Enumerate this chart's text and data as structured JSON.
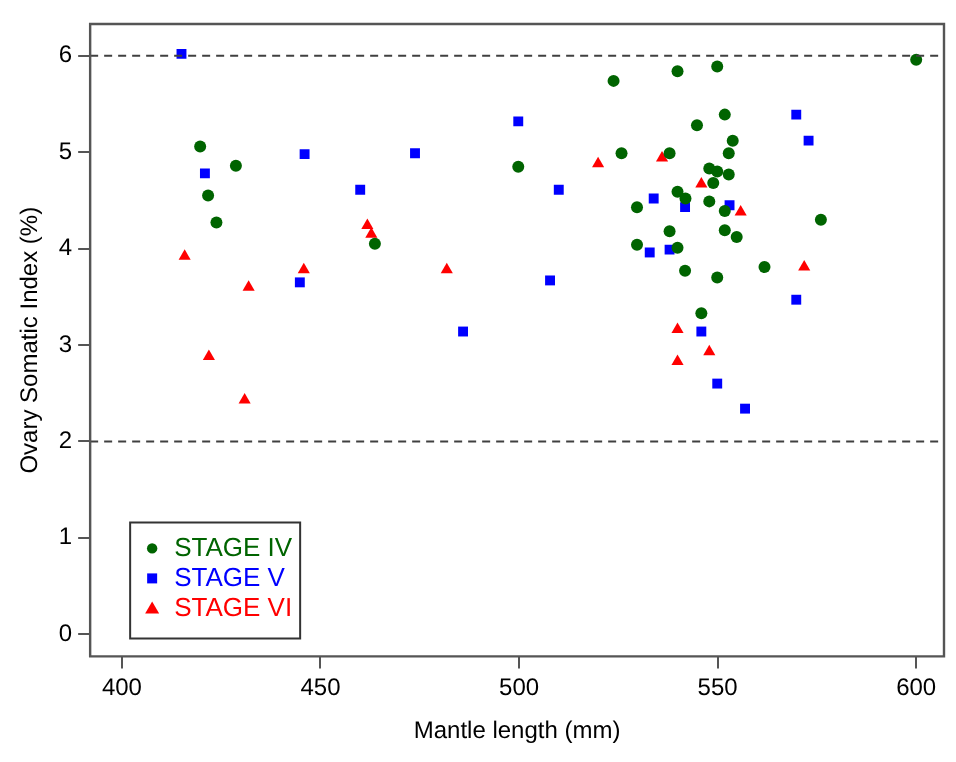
{
  "chart_data": {
    "type": "scatter",
    "xlabel": "Mantle length (mm)",
    "ylabel": "Ovary Somatic Index (%)",
    "xlim": [
      392,
      607
    ],
    "ylim": [
      -0.23,
      6.33
    ],
    "xticks": [
      400,
      450,
      500,
      550,
      600
    ],
    "yticks": [
      0,
      1,
      2,
      3,
      4,
      5,
      6
    ],
    "grid": false,
    "legend": "bottom left",
    "ref_lines": [
      {
        "axis": "y",
        "value": 6,
        "line_style": "dashed",
        "color": "#404040"
      },
      {
        "axis": "y",
        "value": 2,
        "line_style": "dashed",
        "color": "#404040"
      }
    ],
    "series": [
      {
        "name": "STAGE IV",
        "color": "#006400",
        "marker": "circle",
        "x": [
          419.7,
          428.7,
          421.7,
          423.8,
          463.7,
          499.8,
          523.8,
          539.9,
          549.9,
          600,
          551.8,
          544.8,
          553.8,
          552.8,
          525.8,
          537.9,
          547.9,
          549.9,
          552.8,
          548.9,
          539.9,
          541.9,
          547.9,
          529.7,
          551.8,
          537.9,
          551.8,
          554.8,
          529.7,
          539.9,
          576,
          541.8,
          549.9,
          561.8,
          545.9
        ],
        "values": [
          5.06,
          4.86,
          4.55,
          4.27,
          4.05,
          4.85,
          5.74,
          5.84,
          5.89,
          5.96,
          5.39,
          5.28,
          5.12,
          4.99,
          4.99,
          4.99,
          4.83,
          4.8,
          4.77,
          4.68,
          4.59,
          4.52,
          4.49,
          4.43,
          4.39,
          4.18,
          4.19,
          4.12,
          4.04,
          4.01,
          4.3,
          3.77,
          3.7,
          3.81,
          3.33
        ]
      },
      {
        "name": "STAGE V",
        "color": "#0000ff",
        "marker": "square",
        "x": [
          415,
          420.9,
          446,
          444.8,
          460,
          473.8,
          485.9,
          499.8,
          510,
          507.8,
          533.9,
          541.8,
          553,
          532.9,
          537.9,
          569.8,
          572.9,
          569.8,
          545.9,
          549.9,
          556.9
        ],
        "values": [
          6.02,
          4.78,
          4.98,
          3.65,
          4.61,
          4.99,
          3.14,
          5.32,
          4.61,
          3.67,
          4.52,
          4.43,
          4.45,
          3.96,
          3.99,
          5.39,
          5.12,
          3.47,
          3.14,
          2.6,
          2.34
        ]
      },
      {
        "name": "STAGE VI",
        "color": "#ff0000",
        "marker": "triangle",
        "x": [
          415.8,
          431.9,
          421.9,
          430.9,
          445.8,
          461.8,
          462.8,
          481.8,
          519.9,
          536,
          545.9,
          555.8,
          571.8,
          539.9,
          547.9,
          539.9
        ],
        "values": [
          3.92,
          3.6,
          2.88,
          2.43,
          3.78,
          4.24,
          4.15,
          3.78,
          4.88,
          4.94,
          4.67,
          4.38,
          3.81,
          3.16,
          2.93,
          2.83
        ]
      }
    ]
  }
}
